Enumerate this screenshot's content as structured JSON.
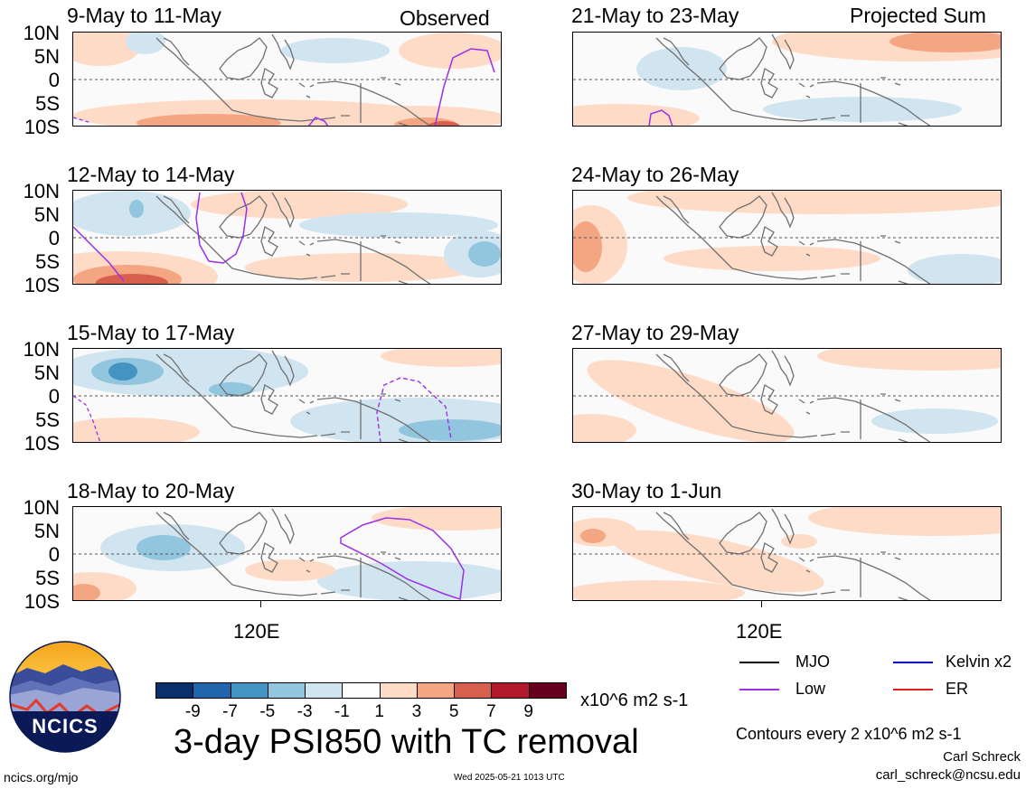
{
  "corner_labels": {
    "observed": "Observed",
    "projected": "Projected Sum"
  },
  "lat_labels": [
    "10N",
    "5N",
    "0",
    "5S",
    "10S"
  ],
  "lon_label": "120E",
  "panels_left": [
    {
      "title": "9-May to 11-May"
    },
    {
      "title": "12-May to 14-May"
    },
    {
      "title": "15-May to 17-May"
    },
    {
      "title": "18-May to 20-May"
    }
  ],
  "panels_right": [
    {
      "title": "21-May to 23-May"
    },
    {
      "title": "24-May to 26-May"
    },
    {
      "title": "27-May to 29-May"
    },
    {
      "title": "30-May to 1-Jun"
    }
  ],
  "colorbar": {
    "colors": [
      "#08306b",
      "#2166ac",
      "#4393c3",
      "#92c5de",
      "#d1e5f0",
      "#ffffff",
      "#fddbc7",
      "#f4a582",
      "#d6604d",
      "#b2182b",
      "#67001f"
    ],
    "labels": [
      "-9",
      "-7",
      "-5",
      "-3",
      "-1",
      "1",
      "3",
      "5",
      "7",
      "9"
    ],
    "unit": "x10^6 m2 s-1"
  },
  "main_title": "3-day PSI850 with TC removal",
  "legend": [
    {
      "label": "MJO",
      "color": "#000000"
    },
    {
      "label": "Kelvin x2",
      "color": "#0000cc"
    },
    {
      "label": "Low",
      "color": "#9b30e6"
    },
    {
      "label": "ER",
      "color": "#e02020"
    }
  ],
  "contour_note": "Contours every 2 x10^6 m2 s-1",
  "author": "Carl Schreck",
  "email": "carl_schreck@ncsu.edu",
  "site": "ncics.org/mjo",
  "timestamp": "Wed 2025-05-21 1013 UTC",
  "logo_text": "NCICS"
}
